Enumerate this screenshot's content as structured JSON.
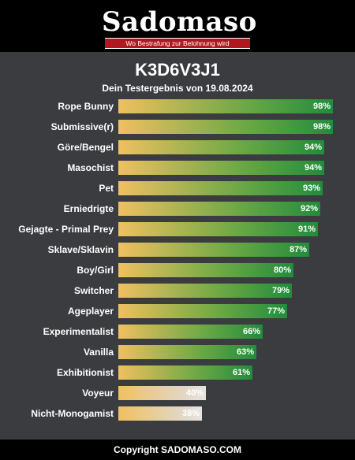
{
  "header": {
    "logo_text": "Sadomaso",
    "tagline": "Wo Bestrafung zur Belohnung wird"
  },
  "chart_data": {
    "type": "bar",
    "orientation": "horizontal",
    "title": "K3D6V3J1",
    "subtitle": "Dein Testergebnis von 19.08.2024",
    "xlim": [
      0,
      100
    ],
    "categories": [
      "Rope Bunny",
      "Submissive(r)",
      "Göre/Bengel",
      "Masochist",
      "Pet",
      "Erniedrigte",
      "Gejagte - Primal Prey",
      "Sklave/Sklavin",
      "Boy/Girl",
      "Switcher",
      "Ageplayer",
      "Experimentalist",
      "Vanilla",
      "Exhibitionist",
      "Voyeur",
      "Nicht-Monogamist"
    ],
    "values": [
      98,
      98,
      94,
      94,
      93,
      92,
      91,
      87,
      80,
      79,
      77,
      66,
      63,
      61,
      40,
      38
    ],
    "value_labels": [
      "98%",
      "98%",
      "94%",
      "94%",
      "93%",
      "92%",
      "91%",
      "87%",
      "80%",
      "79%",
      "77%",
      "66%",
      "63%",
      "61%",
      "40%",
      "38%"
    ],
    "colors": {
      "start": "#f0c060",
      "high_end": "#228c3c",
      "low_end": "#e7e5e2"
    }
  },
  "footer": {
    "text": "Copyright SADOMASO.COM"
  }
}
